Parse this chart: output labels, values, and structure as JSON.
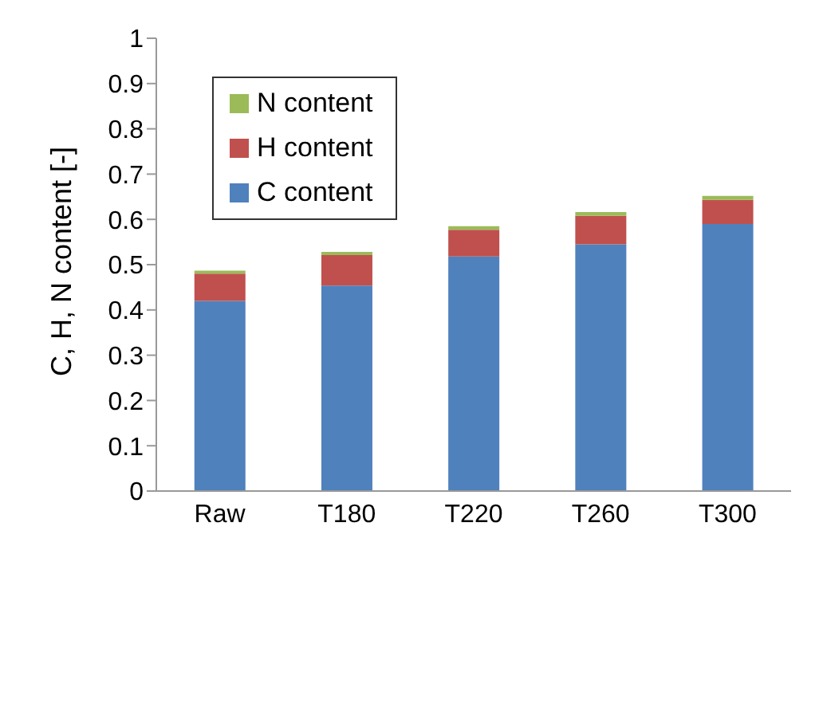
{
  "chart_data": {
    "type": "bar",
    "stacked": true,
    "ylabel": "C, H, N content [-]",
    "categories": [
      "Raw",
      "T180",
      "T220",
      "T260",
      "T300"
    ],
    "series": [
      {
        "name": "C content",
        "color": "#4f81bd",
        "values": [
          0.42,
          0.454,
          0.518,
          0.545,
          0.59
        ]
      },
      {
        "name": "H content",
        "color": "#c0504d",
        "values": [
          0.06,
          0.067,
          0.059,
          0.063,
          0.053
        ]
      },
      {
        "name": "N content",
        "color": "#9bbb59",
        "values": [
          0.007,
          0.007,
          0.008,
          0.008,
          0.009
        ]
      }
    ],
    "ylim": [
      0,
      1
    ],
    "yticks": [
      0,
      0.1,
      0.2,
      0.3,
      0.4,
      0.5,
      0.6,
      0.7,
      0.8,
      0.9,
      1
    ],
    "grid": false,
    "legend": "top left"
  }
}
